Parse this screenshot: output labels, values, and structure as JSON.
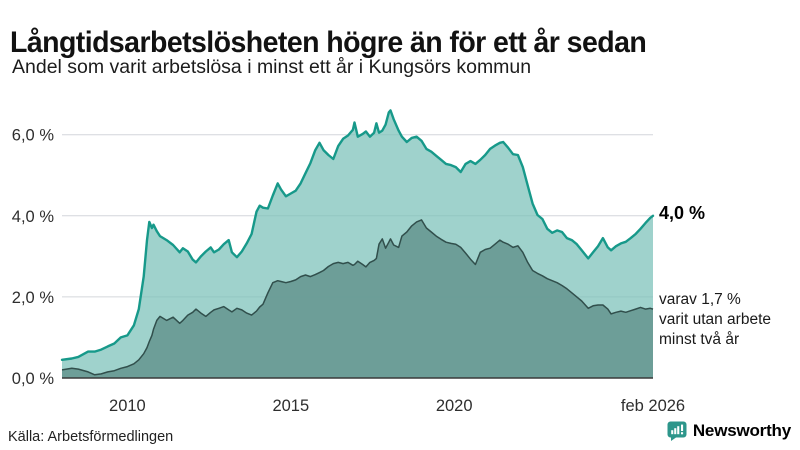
{
  "header": {
    "title": "Långtidsarbetslösheten högre än för ett år sedan",
    "subtitle": "Andel som varit arbetslösa i minst ett år i Kungsörs kommun"
  },
  "annotations": {
    "end_value_label": "4,0 %",
    "secondary_line1": "varav 1,7 %",
    "secondary_line2": "varit utan arbete",
    "secondary_line3": "minst två år"
  },
  "source": {
    "label": "Källa: Arbetsförmedlingen"
  },
  "branding": {
    "name": "Newsworthy",
    "icon": "bar-chart-speech-bubble",
    "color": "#2d968b"
  },
  "colors": {
    "series1_line": "#17998a",
    "series1_fill": "rgba(122,192,184,0.72)",
    "series2_line": "#314f4c",
    "series2_fill": "rgba(103,152,146,0.9)",
    "grid": "#d4d6db",
    "axis": "#3a3a3a",
    "tick_text": "#2e2e2e"
  },
  "chart_data": {
    "type": "area",
    "title": "Långtidsarbetslösheten högre än för ett år sedan",
    "subtitle": "Andel som varit arbetslösa i minst ett år i Kungsörs kommun",
    "unit": "%",
    "grid": true,
    "x_range": [
      2008.0,
      2026.083
    ],
    "ylim": [
      0,
      6.9
    ],
    "y_ticks": [
      {
        "label": "6,0 %",
        "value": 6
      },
      {
        "label": "4,0 %",
        "value": 4
      },
      {
        "label": "2,0 %",
        "value": 2
      },
      {
        "label": "0,0 %",
        "value": 0
      }
    ],
    "x_ticks": [
      {
        "label": "2010",
        "x": 2010
      },
      {
        "label": "2015",
        "x": 2015
      },
      {
        "label": "2020",
        "x": 2020
      },
      {
        "label": "feb 2026",
        "x": 2026.083
      }
    ],
    "end_labels": {
      "series1": "4,0 %",
      "series2": "1,7 %"
    },
    "x": [
      2008.0,
      2008.3,
      2008.5,
      2008.8,
      2009.0,
      2009.2,
      2009.4,
      2009.6,
      2009.8,
      2010.0,
      2010.2,
      2010.35,
      2010.5,
      2010.6,
      2010.67,
      2010.75,
      2010.8,
      2010.9,
      2011.0,
      2011.2,
      2011.4,
      2011.6,
      2011.7,
      2011.85,
      2012.0,
      2012.1,
      2012.25,
      2012.4,
      2012.55,
      2012.65,
      2012.8,
      2012.95,
      2013.1,
      2013.2,
      2013.35,
      2013.5,
      2013.65,
      2013.8,
      2013.95,
      2014.05,
      2014.15,
      2014.3,
      2014.45,
      2014.6,
      2014.7,
      2014.85,
      2015.0,
      2015.15,
      2015.3,
      2015.45,
      2015.6,
      2015.75,
      2015.88,
      2016.0,
      2016.15,
      2016.3,
      2016.45,
      2016.6,
      2016.75,
      2016.9,
      2016.95,
      2017.05,
      2017.2,
      2017.3,
      2017.42,
      2017.55,
      2017.62,
      2017.7,
      2017.8,
      2017.9,
      2018.0,
      2018.05,
      2018.15,
      2018.3,
      2018.4,
      2018.55,
      2018.7,
      2018.85,
      2019.0,
      2019.15,
      2019.3,
      2019.45,
      2019.6,
      2019.75,
      2019.9,
      2020.05,
      2020.2,
      2020.35,
      2020.5,
      2020.65,
      2020.8,
      2020.95,
      2021.1,
      2021.25,
      2021.4,
      2021.5,
      2021.65,
      2021.8,
      2021.95,
      2022.1,
      2022.25,
      2022.4,
      2022.55,
      2022.7,
      2022.85,
      2023.0,
      2023.15,
      2023.3,
      2023.45,
      2023.6,
      2023.75,
      2023.9,
      2024.1,
      2024.25,
      2024.4,
      2024.55,
      2024.7,
      2024.8,
      2024.95,
      2025.1,
      2025.25,
      2025.4,
      2025.55,
      2025.7,
      2025.85,
      2026.0,
      2026.083
    ],
    "series": [
      {
        "name": "Arbetslösa minst ett år",
        "values": [
          0.45,
          0.48,
          0.52,
          0.65,
          0.65,
          0.7,
          0.78,
          0.85,
          1.0,
          1.05,
          1.3,
          1.7,
          2.5,
          3.4,
          3.85,
          3.7,
          3.78,
          3.62,
          3.5,
          3.4,
          3.28,
          3.1,
          3.2,
          3.12,
          2.92,
          2.85,
          3.0,
          3.12,
          3.22,
          3.1,
          3.17,
          3.3,
          3.4,
          3.1,
          2.98,
          3.12,
          3.32,
          3.55,
          4.1,
          4.25,
          4.2,
          4.18,
          4.5,
          4.8,
          4.65,
          4.48,
          4.55,
          4.62,
          4.8,
          5.05,
          5.3,
          5.62,
          5.8,
          5.62,
          5.5,
          5.4,
          5.72,
          5.9,
          5.98,
          6.12,
          6.3,
          5.95,
          6.02,
          6.08,
          5.95,
          6.05,
          6.28,
          6.05,
          6.1,
          6.25,
          6.55,
          6.6,
          6.38,
          6.1,
          5.95,
          5.82,
          5.92,
          5.95,
          5.85,
          5.65,
          5.58,
          5.48,
          5.38,
          5.28,
          5.25,
          5.2,
          5.08,
          5.28,
          5.35,
          5.28,
          5.38,
          5.5,
          5.65,
          5.73,
          5.8,
          5.82,
          5.68,
          5.52,
          5.5,
          5.2,
          4.75,
          4.3,
          4.02,
          3.92,
          3.68,
          3.58,
          3.64,
          3.6,
          3.45,
          3.4,
          3.3,
          3.15,
          2.95,
          3.1,
          3.25,
          3.45,
          3.22,
          3.15,
          3.25,
          3.32,
          3.36,
          3.45,
          3.55,
          3.68,
          3.82,
          3.95,
          4.0
        ]
      },
      {
        "name": "varav utan arbete minst två år",
        "values": [
          0.2,
          0.24,
          0.22,
          0.15,
          0.08,
          0.1,
          0.15,
          0.18,
          0.24,
          0.28,
          0.35,
          0.45,
          0.6,
          0.75,
          0.9,
          1.05,
          1.2,
          1.42,
          1.52,
          1.42,
          1.5,
          1.35,
          1.42,
          1.55,
          1.62,
          1.7,
          1.6,
          1.52,
          1.62,
          1.68,
          1.72,
          1.76,
          1.68,
          1.63,
          1.72,
          1.68,
          1.6,
          1.55,
          1.65,
          1.75,
          1.82,
          2.1,
          2.35,
          2.4,
          2.38,
          2.35,
          2.38,
          2.42,
          2.5,
          2.54,
          2.5,
          2.55,
          2.6,
          2.65,
          2.75,
          2.82,
          2.85,
          2.82,
          2.85,
          2.78,
          2.8,
          2.88,
          2.8,
          2.74,
          2.85,
          2.9,
          2.95,
          3.3,
          3.43,
          3.2,
          3.35,
          3.43,
          3.28,
          3.22,
          3.5,
          3.6,
          3.75,
          3.85,
          3.9,
          3.7,
          3.6,
          3.5,
          3.42,
          3.35,
          3.32,
          3.3,
          3.22,
          3.08,
          2.93,
          2.8,
          3.1,
          3.17,
          3.2,
          3.3,
          3.4,
          3.35,
          3.3,
          3.22,
          3.26,
          3.1,
          2.85,
          2.65,
          2.58,
          2.52,
          2.45,
          2.4,
          2.35,
          2.28,
          2.2,
          2.1,
          2.0,
          1.9,
          1.72,
          1.78,
          1.8,
          1.8,
          1.7,
          1.58,
          1.62,
          1.65,
          1.62,
          1.66,
          1.7,
          1.74,
          1.7,
          1.72,
          1.7
        ]
      }
    ]
  }
}
